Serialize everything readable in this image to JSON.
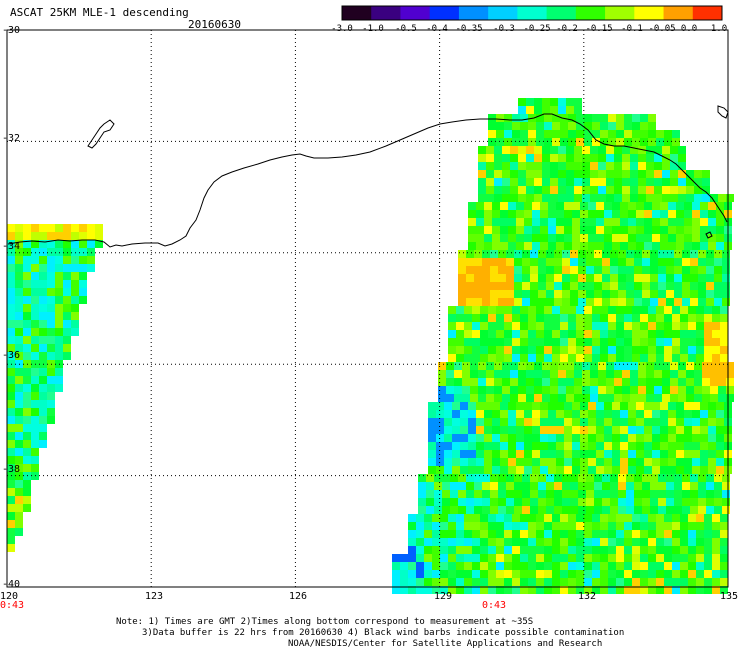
{
  "header": {
    "title": "ASCAT 25KM MLE-1 descending",
    "date": "20160630"
  },
  "colorbar": {
    "labels": [
      "-3.0",
      "-1.0",
      "-0.5",
      "-0.4",
      "-0.35",
      "-0.3",
      "-0.25",
      "-0.2",
      "-0.15",
      "-0.1",
      "-0.05",
      "0.0",
      "1.0"
    ],
    "colors": [
      "#200020",
      "#3a0080",
      "#5000d0",
      "#0030ff",
      "#0090ff",
      "#00d0ff",
      "#00ffd0",
      "#00ff70",
      "#30ff00",
      "#a0ff00",
      "#ffff00",
      "#ffa000",
      "#ff3000"
    ]
  },
  "axes": {
    "lat_labels": [
      "-30",
      "-32",
      "-34",
      "-36",
      "-38",
      "-40"
    ],
    "lon_labels": [
      "120",
      "123",
      "126",
      "129",
      "132",
      "135"
    ],
    "lon_range": [
      120,
      135
    ],
    "lat_range": [
      -40,
      -30
    ]
  },
  "time_labels": [
    "0:43",
    "0:43"
  ],
  "notes": {
    "line1": "Note: 1) Times are GMT 2)Times along bottom correspond to measurement at ~35S",
    "line2": "3)Data buffer is 22 hrs from 20160630 4) Black wind barbs indicate possible contamination",
    "line3": "NOAA/NESDIS/Center for Satellite Applications and Research"
  }
}
